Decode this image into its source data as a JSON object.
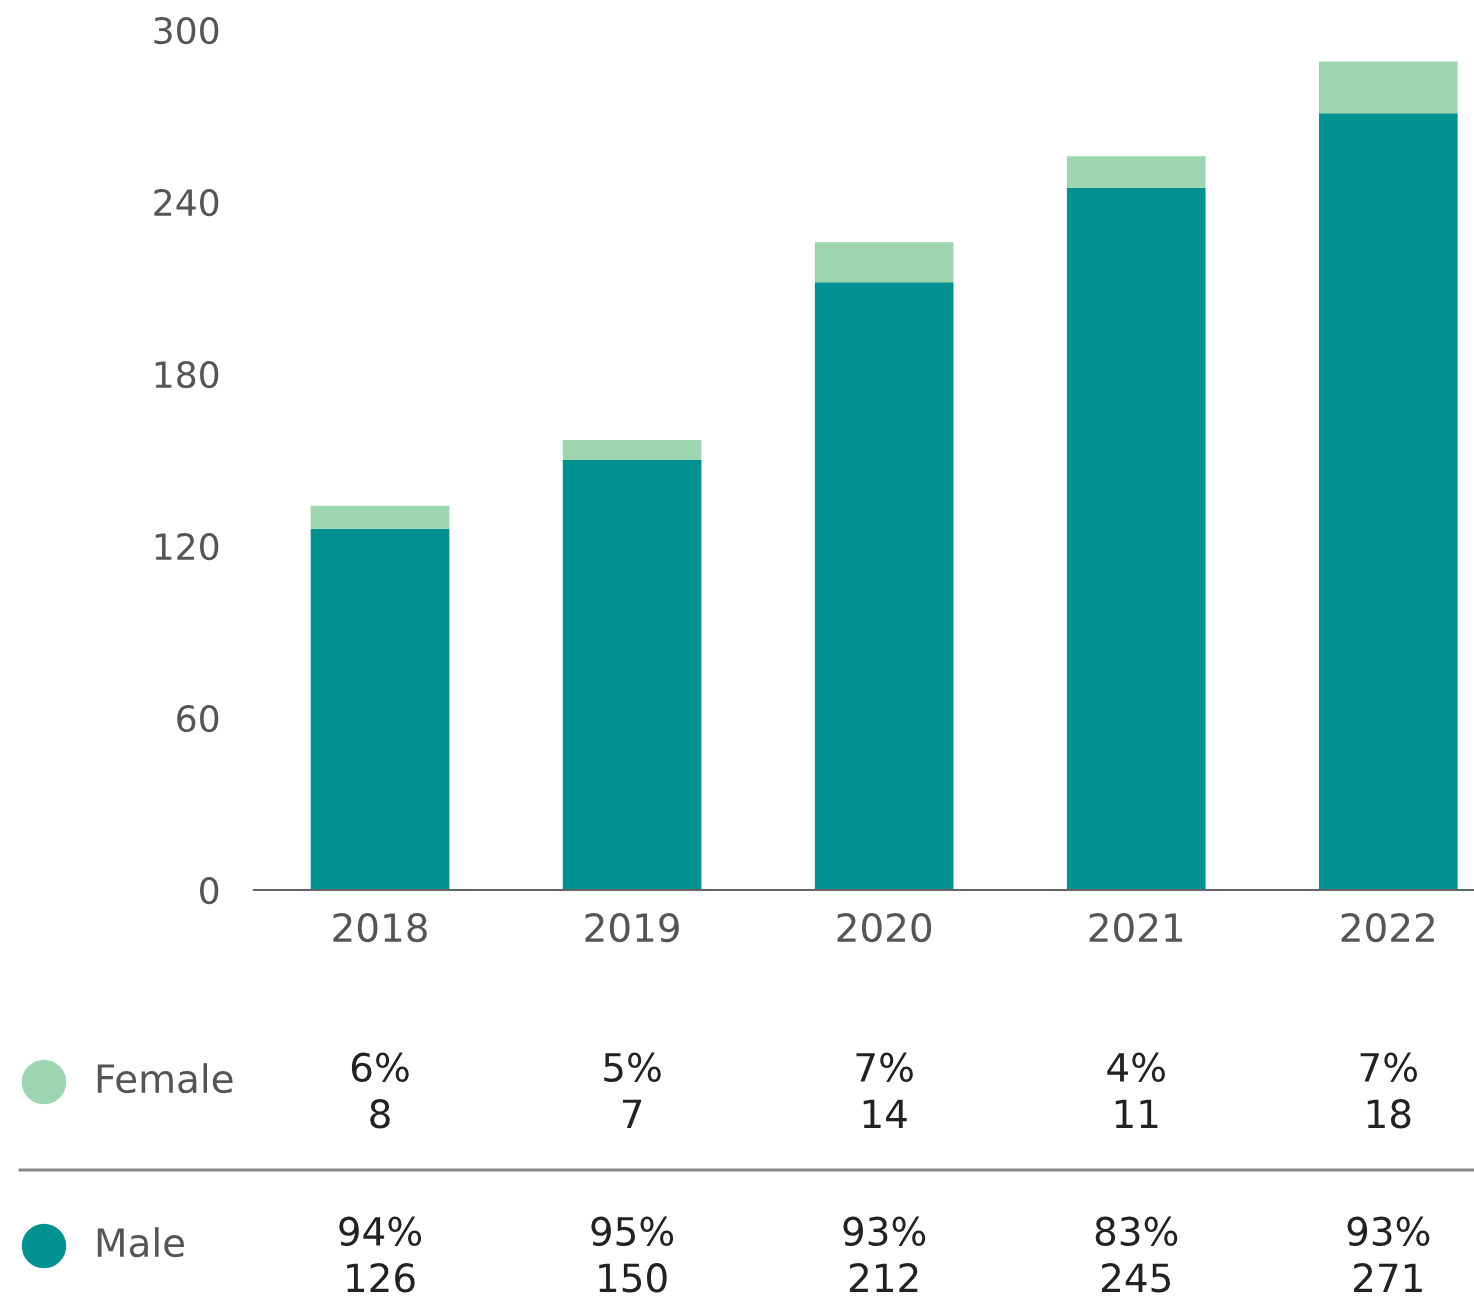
{
  "chart_data": {
    "type": "bar",
    "stacked": true,
    "categories": [
      "2018",
      "2019",
      "2020",
      "2021",
      "2022"
    ],
    "series": [
      {
        "name": "Male",
        "color": "#009290",
        "values": [
          126,
          150,
          212,
          245,
          271
        ],
        "value_labels": [
          "94%\n126",
          "95%\n150",
          "93%\n212",
          "83%\n245",
          "93%\n271"
        ]
      },
      {
        "name": "Female",
        "color": "#9dd5b0",
        "values": [
          8,
          7,
          14,
          11,
          18
        ],
        "value_labels": [
          "6%\n8",
          "5%\n7",
          "7%\n14",
          "4%\n11",
          "7%\n18"
        ]
      }
    ],
    "ylim": [
      0,
      300
    ],
    "yticks": [
      0,
      60,
      120,
      180,
      240,
      300
    ],
    "grid": false,
    "legend": "bottom"
  }
}
